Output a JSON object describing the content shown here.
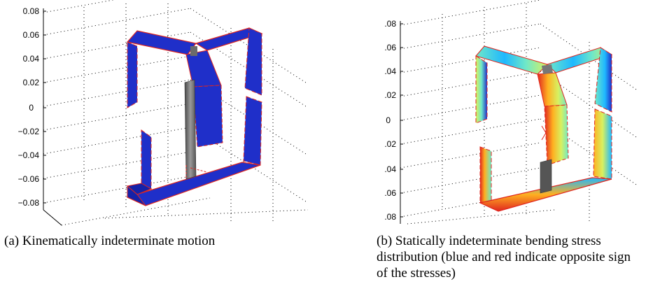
{
  "figure_a": {
    "caption": "(a) Kinematically indeterminate motion",
    "z_ticks": [
      "0.08",
      "0.06",
      "0.04",
      "0.02",
      "0",
      "−0.02",
      "−0.04",
      "−0.06",
      "−0.08"
    ],
    "colors": {
      "plate": "#1f2fc9",
      "plate_dark": "#1522a8",
      "edge": "#e0261f",
      "post": "#6b6b6b",
      "post_light": "#9a9a9a"
    }
  },
  "figure_b": {
    "caption": "(b) Statically indeterminate bending stress distribution (blue and red indicate opposite sign of the stresses)",
    "z_ticks": [
      ".08",
      ".06",
      ".04",
      ".02",
      "0",
      ".02",
      ".04",
      ".06",
      ".08"
    ],
    "colormap": [
      "#1f2fc9",
      "#1fb8ff",
      "#6fe8c8",
      "#d8f060",
      "#ffb020",
      "#e0261f"
    ],
    "colors": {
      "edge": "#e0261f",
      "post": "#555555"
    }
  }
}
